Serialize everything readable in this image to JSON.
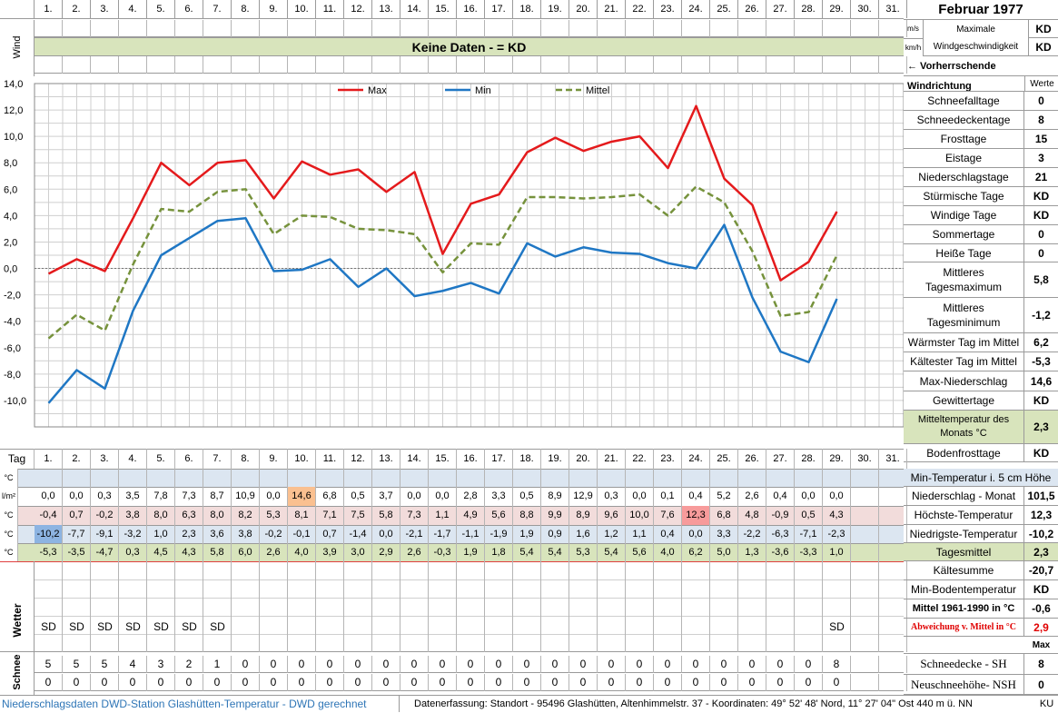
{
  "header": {
    "title": "Februar 1977",
    "days": [
      "1.",
      "2.",
      "3.",
      "4.",
      "5.",
      "6.",
      "7.",
      "8.",
      "9.",
      "10.",
      "11.",
      "12.",
      "13.",
      "14.",
      "15.",
      "16.",
      "17.",
      "18.",
      "19.",
      "20.",
      "21.",
      "22.",
      "23.",
      "24.",
      "25.",
      "26.",
      "27.",
      "28.",
      "29.",
      "30.",
      "31."
    ]
  },
  "wind": {
    "label": "Wind",
    "banner": "Keine Daten -  = KD",
    "unit_ms": "m/s",
    "unit_kmh": "km/h",
    "max_label": "Maximale Windgeschwindigkeit",
    "max_ms": "KD",
    "max_kmh": "KD",
    "direction_label": "← Vorherrschende Windrichtung"
  },
  "chart_data": {
    "type": "line",
    "x": [
      1,
      2,
      3,
      4,
      5,
      6,
      7,
      8,
      9,
      10,
      11,
      12,
      13,
      14,
      15,
      16,
      17,
      18,
      19,
      20,
      21,
      22,
      23,
      24,
      25,
      26,
      27,
      28,
      29
    ],
    "ylim": [
      -12,
      14
    ],
    "yticks": [
      "14,0",
      "12,0",
      "10,0",
      "8,0",
      "6,0",
      "4,0",
      "2,0",
      "0,0",
      "-2,0",
      "-4,0",
      "-6,0",
      "-8,0",
      "-10,0"
    ],
    "grid": true,
    "legend": "top",
    "series": [
      {
        "name": "Max",
        "color": "#e41a1c",
        "dash": false,
        "values": [
          -0.4,
          0.7,
          -0.2,
          3.8,
          8.0,
          6.3,
          8.0,
          8.2,
          5.3,
          8.1,
          7.1,
          7.5,
          5.8,
          7.3,
          1.1,
          4.9,
          5.6,
          8.8,
          9.9,
          8.9,
          9.6,
          10.0,
          7.6,
          12.3,
          6.8,
          4.8,
          -0.9,
          0.5,
          4.3
        ]
      },
      {
        "name": "Min",
        "color": "#1f77c4",
        "dash": false,
        "values": [
          -10.2,
          -7.7,
          -9.1,
          -3.2,
          1.0,
          2.3,
          3.6,
          3.8,
          -0.2,
          -0.1,
          0.7,
          -1.4,
          0.0,
          -2.1,
          -1.7,
          -1.1,
          -1.9,
          1.9,
          0.9,
          1.6,
          1.2,
          1.1,
          0.4,
          0.0,
          3.3,
          -2.2,
          -6.3,
          -7.1,
          -2.3
        ]
      },
      {
        "name": "Mittel",
        "color": "#76923c",
        "dash": true,
        "values": [
          -5.3,
          -3.5,
          -4.7,
          0.3,
          4.5,
          4.3,
          5.8,
          6.0,
          2.6,
          4.0,
          3.9,
          3.0,
          2.9,
          2.6,
          -0.3,
          1.9,
          1.8,
          5.4,
          5.4,
          5.3,
          5.4,
          5.6,
          4.0,
          6.2,
          5.0,
          1.3,
          -3.6,
          -3.3,
          1.0
        ]
      }
    ]
  },
  "table": {
    "tag_label": "Tag",
    "unit_c": "°C",
    "unit_lm": "l/m²",
    "niederschlag": [
      "0,0",
      "0,0",
      "0,3",
      "3,5",
      "7,8",
      "7,3",
      "8,7",
      "10,9",
      "0,0",
      "14,6",
      "6,8",
      "0,5",
      "3,7",
      "0,0",
      "0,0",
      "2,8",
      "3,3",
      "0,5",
      "8,9",
      "12,9",
      "0,3",
      "0,0",
      "0,1",
      "0,4",
      "5,2",
      "2,6",
      "0,4",
      "0,0",
      "0,0",
      "",
      ""
    ],
    "hoechst": [
      "-0,4",
      "0,7",
      "-0,2",
      "3,8",
      "8,0",
      "6,3",
      "8,0",
      "8,2",
      "5,3",
      "8,1",
      "7,1",
      "7,5",
      "5,8",
      "7,3",
      "1,1",
      "4,9",
      "5,6",
      "8,8",
      "9,9",
      "8,9",
      "9,6",
      "10,0",
      "7,6",
      "12,3",
      "6,8",
      "4,8",
      "-0,9",
      "0,5",
      "4,3",
      "",
      ""
    ],
    "niedrigst": [
      "-10,2",
      "-7,7",
      "-9,1",
      "-3,2",
      "1,0",
      "2,3",
      "3,6",
      "3,8",
      "-0,2",
      "-0,1",
      "0,7",
      "-1,4",
      "0,0",
      "-2,1",
      "-1,7",
      "-1,1",
      "-1,9",
      "1,9",
      "0,9",
      "1,6",
      "1,2",
      "1,1",
      "0,4",
      "0,0",
      "3,3",
      "-2,2",
      "-6,3",
      "-7,1",
      "-2,3",
      "",
      ""
    ],
    "mittel": [
      "-5,3",
      "-3,5",
      "-4,7",
      "0,3",
      "4,5",
      "4,3",
      "5,8",
      "6,0",
      "2,6",
      "4,0",
      "3,9",
      "3,0",
      "2,9",
      "2,6",
      "-0,3",
      "1,9",
      "1,8",
      "5,4",
      "5,4",
      "5,3",
      "5,4",
      "5,6",
      "4,0",
      "6,2",
      "5,0",
      "1,3",
      "-3,6",
      "-3,3",
      "1,0",
      "",
      ""
    ],
    "wetter_label": "Wetter",
    "wetter": [
      "SD",
      "SD",
      "SD",
      "SD",
      "SD",
      "SD",
      "SD",
      "",
      "",
      "",
      "",
      "",
      "",
      "",
      "",
      "",
      "",
      "",
      "",
      "",
      "",
      "",
      "",
      "",
      "",
      "",
      "",
      "",
      "SD",
      "",
      ""
    ],
    "schnee_label": "Schnee",
    "schneedecke": [
      "5",
      "5",
      "5",
      "4",
      "3",
      "2",
      "1",
      "0",
      "0",
      "0",
      "0",
      "0",
      "0",
      "0",
      "0",
      "0",
      "0",
      "0",
      "0",
      "0",
      "0",
      "0",
      "0",
      "0",
      "0",
      "0",
      "0",
      "0",
      "8",
      "",
      ""
    ],
    "neuschnee": [
      "0",
      "0",
      "0",
      "0",
      "0",
      "0",
      "0",
      "0",
      "0",
      "0",
      "0",
      "0",
      "0",
      "0",
      "0",
      "0",
      "0",
      "0",
      "0",
      "0",
      "0",
      "0",
      "0",
      "0",
      "0",
      "0",
      "0",
      "0",
      "0",
      "",
      ""
    ]
  },
  "stats": {
    "werte_label": "Werte",
    "items": [
      {
        "label": "Schneefalltage",
        "value": "0"
      },
      {
        "label": "Schneedeckentage",
        "value": "8"
      },
      {
        "label": "Frosttage",
        "value": "15"
      },
      {
        "label": "Eistage",
        "value": "3"
      },
      {
        "label": "Niederschlagstage",
        "value": "21"
      },
      {
        "label": "Stürmische Tage",
        "value": "KD"
      },
      {
        "label": "Windige Tage",
        "value": "KD"
      },
      {
        "label": "Sommertage",
        "value": "0"
      },
      {
        "label": "Heiße Tage",
        "value": "0"
      },
      {
        "label": "Mittleres Tagesmaximum",
        "value": "5,8"
      },
      {
        "label": "Mittleres Tagesminimum",
        "value": "-1,2"
      },
      {
        "label": "Wärmster Tag im Mittel",
        "value": "6,2"
      },
      {
        "label": "Kältester Tag im Mittel",
        "value": "-5,3"
      },
      {
        "label": "Max-Niederschlag",
        "value": "14,6"
      },
      {
        "label": "Gewittertage",
        "value": "KD"
      },
      {
        "label": "Mitteltemperatur des Monats °C",
        "value": "2,3"
      },
      {
        "label": "Bodenfrosttage",
        "value": "KD"
      }
    ],
    "lower": [
      {
        "label": "Min-Temperatur i. 5 cm Höhe",
        "value": ""
      },
      {
        "label": "Niederschlag - Monat",
        "value": "101,5"
      },
      {
        "label": "Höchste-Temperatur",
        "value": "12,3"
      },
      {
        "label": "Niedrigste-Temperatur",
        "value": "-10,2"
      },
      {
        "label": "Tagesmittel",
        "value": "2,3"
      },
      {
        "label": "Kältesumme",
        "value": "-20,7"
      },
      {
        "label": "Min-Bodentemperatur",
        "value": "KD"
      },
      {
        "label": "Mittel 1961-1990 in °C",
        "value": "-0,6"
      },
      {
        "label": "Abweichung v. Mittel in °C",
        "value": "2,9"
      },
      {
        "label": "",
        "value": "Max"
      },
      {
        "label": "Schneedecke -   SH",
        "value": "8"
      },
      {
        "label": "Neuschneehöhe- NSH",
        "value": "0"
      }
    ]
  },
  "footer": {
    "left": "Niederschlagsdaten DWD-Station Glashütten-Temperatur -   DWD gerechnet",
    "right": "Datenerfassung: Standort -  95496  Glashütten, Altenhimmelstr. 37 - Koordinaten:  49° 52' 48' Nord,   11° 27' 04\" Ost   440 m ü. NN",
    "sheet": "KU"
  }
}
